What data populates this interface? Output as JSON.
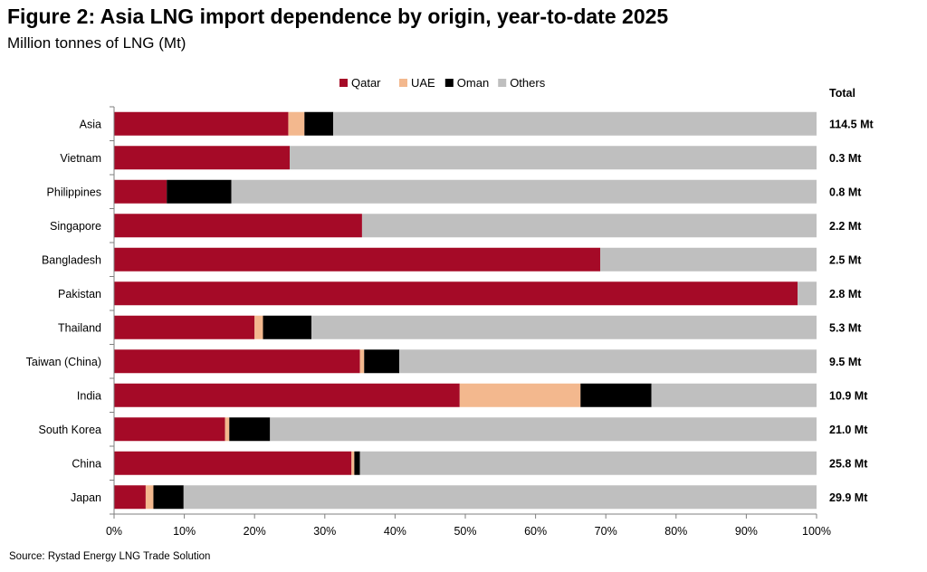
{
  "title": "Figure 2: Asia LNG import dependence by origin, year-to-date 2025",
  "subtitle": "Million tonnes of LNG (Mt)",
  "source": "Source: Rystad Energy LNG Trade Solution",
  "chart_data": {
    "type": "bar",
    "orientation": "horizontal",
    "stacked": true,
    "categories": [
      "Asia",
      "Vietnam",
      "Philippines",
      "Singapore",
      "Bangladesh",
      "Pakistan",
      "Thailand",
      "Taiwan (China)",
      "India",
      "South Korea",
      "China",
      "Japan"
    ],
    "series": [
      {
        "name": "Qatar",
        "color": "#a50a27",
        "values": [
          24.8,
          25.0,
          7.5,
          35.3,
          69.2,
          97.3,
          20.0,
          35.0,
          49.2,
          15.8,
          33.8,
          4.5
        ]
      },
      {
        "name": "UAE",
        "color": "#f3b88e",
        "values": [
          2.3,
          0,
          0,
          0,
          0,
          0,
          1.2,
          0.6,
          17.2,
          0.6,
          0.4,
          1.1
        ]
      },
      {
        "name": "Oman",
        "color": "#000000",
        "values": [
          4.1,
          0,
          9.2,
          0,
          0,
          0,
          6.9,
          5.0,
          10.1,
          5.8,
          0.8,
          4.3
        ]
      },
      {
        "name": "Others",
        "color": "#bfbfbf",
        "values": [
          68.8,
          75.0,
          83.3,
          64.7,
          30.8,
          2.7,
          71.9,
          59.4,
          23.5,
          77.8,
          65.0,
          90.1
        ]
      }
    ],
    "totals_header": "Total",
    "totals": [
      "114.5 Mt",
      "0.3 Mt",
      "0.8 Mt",
      "2.2 Mt",
      "2.5 Mt",
      "2.8 Mt",
      "5.3 Mt",
      "9.5 Mt",
      "10.9 Mt",
      "21.0 Mt",
      "25.8 Mt",
      "29.9 Mt"
    ],
    "x_ticks": [
      "0%",
      "10%",
      "20%",
      "30%",
      "40%",
      "50%",
      "60%",
      "70%",
      "80%",
      "90%",
      "100%"
    ],
    "xlim": [
      0,
      100
    ],
    "xlabel": "",
    "ylabel": "",
    "legend_position": "top",
    "grid": false
  }
}
